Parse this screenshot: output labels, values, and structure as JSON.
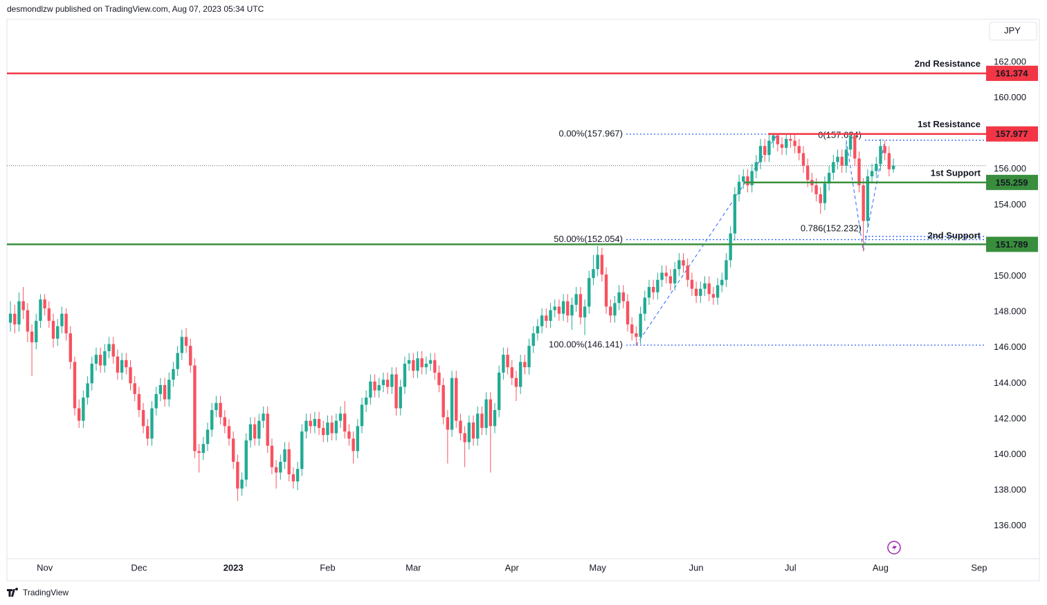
{
  "header": "desmondlzw published on TradingView.com, Aug 07, 2023 05:34 UTC",
  "footer": "TradingView",
  "chart_data": {
    "type": "candlestick",
    "currency": "JPY",
    "categories": [
      null,
      null,
      null,
      null,
      null,
      null,
      null,
      null,
      "Nov",
      null,
      null,
      null,
      null,
      null,
      null,
      null,
      null,
      null,
      null,
      null,
      null,
      null,
      null,
      null,
      null,
      null,
      null,
      null,
      null,
      null,
      "Dec",
      null,
      null,
      null,
      null,
      null,
      null,
      null,
      null,
      null,
      null,
      null,
      null,
      null,
      null,
      null,
      null,
      null,
      null,
      null,
      null,
      null,
      "2023",
      null,
      null,
      null,
      null,
      null,
      null,
      null,
      null,
      null,
      null,
      null,
      null,
      null,
      null,
      null,
      null,
      null,
      null,
      null,
      null,
      null,
      "Feb",
      null,
      null,
      null,
      null,
      null,
      null,
      null,
      null,
      null,
      null,
      null,
      null,
      null,
      null,
      null,
      null,
      null,
      null,
      null,
      "Mar",
      null,
      null,
      null,
      null,
      null,
      null,
      null,
      null,
      null,
      null,
      null,
      null,
      null,
      null,
      null,
      null,
      null,
      null,
      null,
      null,
      null,
      null,
      "Apr",
      null,
      null,
      null,
      null,
      null,
      null,
      null,
      null,
      null,
      null,
      null,
      null,
      null,
      null,
      null,
      null,
      null,
      null,
      null,
      "May",
      null,
      null,
      null,
      null,
      null,
      null,
      null,
      null,
      null,
      null,
      null,
      null,
      null,
      null,
      null,
      null,
      null,
      null,
      null,
      null,
      null,
      null,
      "Jun",
      null,
      null,
      null,
      null,
      null,
      null,
      null,
      null,
      null,
      null,
      null,
      null,
      null,
      null,
      null,
      null,
      null,
      null,
      null,
      null,
      null,
      "Jul",
      null,
      null,
      null,
      null,
      null,
      null,
      null,
      null,
      null,
      null,
      null,
      null,
      null,
      null,
      null,
      null,
      null,
      null,
      null,
      null,
      "Aug",
      null,
      null,
      null,
      null,
      null,
      null,
      null,
      null,
      null,
      null,
      null,
      null,
      null,
      null,
      null,
      null,
      null,
      null,
      null,
      null,
      null,
      null,
      "Sep"
    ],
    "open": [
      147.4,
      147.9,
      147.3,
      148.6,
      148.1,
      146.9,
      146.3,
      147.5,
      148.7,
      148.2,
      147.5,
      146.5,
      147.2,
      147.9,
      146.8,
      145.2,
      142.6,
      141.9,
      143.2,
      144.0,
      145.1,
      145.6,
      145.0,
      145.8,
      146.2,
      145.5,
      144.6,
      145.3,
      144.9,
      144.0,
      143.4,
      142.5,
      141.6,
      140.9,
      142.6,
      143.4,
      143.9,
      143.1,
      144.2,
      144.8,
      145.7,
      146.6,
      146.1,
      145.0,
      140.2,
      140.1,
      140.6,
      141.4,
      142.5,
      142.9,
      142.1,
      141.6,
      140.9,
      139.6,
      138.1,
      138.6,
      140.8,
      141.7,
      140.9,
      141.9,
      142.3,
      140.5,
      139.3,
      139.0,
      139.6,
      140.3,
      138.9,
      138.5,
      139.2,
      141.3,
      141.9,
      141.6,
      142.0,
      141.5,
      141.1,
      141.8,
      141.2,
      141.9,
      142.3,
      141.3,
      140.9,
      140.2,
      141.6,
      142.8,
      143.2,
      144.1,
      143.6,
      143.9,
      144.2,
      143.8,
      144.5,
      142.6,
      143.8,
      145.1,
      145.3,
      144.7,
      145.4,
      144.9,
      145.1,
      145.3,
      144.6,
      143.9,
      142.1,
      141.4,
      144.3,
      141.9,
      141.2,
      140.7,
      141.8,
      140.9,
      142.3,
      141.5,
      143.1,
      141.6,
      142.5,
      144.6,
      145.6,
      144.9,
      144.3,
      143.8,
      145.2,
      144.9,
      146.1,
      146.8,
      147.2,
      147.8,
      147.5,
      148.1,
      148.3,
      147.9,
      148.6,
      147.8,
      148.4,
      149.0,
      147.7,
      148.3,
      149.9,
      150.4,
      151.2,
      150.1,
      148.3,
      147.8,
      148.5,
      149.1,
      148.6,
      147.3,
      146.8,
      146.6,
      147.9,
      148.8,
      149.4,
      149.1,
      149.8,
      150.2,
      150.0,
      149.6,
      150.4,
      150.9,
      150.6,
      149.8,
      149.3,
      148.9,
      149.3,
      149.6,
      149.0,
      148.8,
      149.5,
      149.8,
      150.9,
      152.4,
      154.6,
      155.3,
      155.6,
      155.1,
      155.9,
      156.4,
      157.3,
      156.8,
      157.6,
      157.9,
      157.4,
      157.2,
      157.7,
      157.6,
      157.3,
      156.9,
      156.2,
      155.4,
      155.1,
      154.6,
      154.1,
      155.2,
      155.8,
      156.4,
      156.7,
      156.2,
      157.1,
      157.9,
      156.6,
      155.1,
      153.1,
      155.6,
      155.9,
      156.3,
      157.3,
      156.9,
      156.0,
      null,
      null,
      null,
      null,
      null,
      null,
      null,
      null,
      null,
      null,
      null,
      null,
      null,
      null,
      null,
      null,
      null,
      null,
      null,
      null
    ],
    "high": [
      148.6,
      148.4,
      149.1,
      149.4,
      148.5,
      147.3,
      147.9,
      149.0,
      149.0,
      148.6,
      147.9,
      147.6,
      148.3,
      148.2,
      147.2,
      145.5,
      143.1,
      143.6,
      144.4,
      145.5,
      146.0,
      146.0,
      146.2,
      146.6,
      146.6,
      145.9,
      145.7,
      145.7,
      145.3,
      144.4,
      143.8,
      142.9,
      142.0,
      143.0,
      143.8,
      144.3,
      144.3,
      144.6,
      145.2,
      146.1,
      147.0,
      147.1,
      146.5,
      145.4,
      140.6,
      141.0,
      141.8,
      142.9,
      143.3,
      143.3,
      142.5,
      142.0,
      141.3,
      140.0,
      139.0,
      141.2,
      142.1,
      142.1,
      142.3,
      142.7,
      142.7,
      140.9,
      139.7,
      140.0,
      140.7,
      140.7,
      139.3,
      139.6,
      141.7,
      142.3,
      142.3,
      142.4,
      142.4,
      141.9,
      142.2,
      142.2,
      142.3,
      142.7,
      143.0,
      141.7,
      141.3,
      142.0,
      143.2,
      143.6,
      144.5,
      144.5,
      144.3,
      144.6,
      144.6,
      144.9,
      144.9,
      144.2,
      145.5,
      145.7,
      145.7,
      145.8,
      145.8,
      145.5,
      145.7,
      145.7,
      145.0,
      144.3,
      142.5,
      144.7,
      144.7,
      142.3,
      141.6,
      142.2,
      142.2,
      142.7,
      142.7,
      143.5,
      143.5,
      142.9,
      145.0,
      146.0,
      146.0,
      145.3,
      144.7,
      145.6,
      145.6,
      146.5,
      147.2,
      147.6,
      148.2,
      148.2,
      148.5,
      148.7,
      148.7,
      149.0,
      149.0,
      148.8,
      149.4,
      149.4,
      148.7,
      150.3,
      151.2,
      151.7,
      151.6,
      150.5,
      148.7,
      148.9,
      149.5,
      149.5,
      149.0,
      147.7,
      147.2,
      148.3,
      149.2,
      149.8,
      149.8,
      150.2,
      150.6,
      150.6,
      150.4,
      150.8,
      151.3,
      151.3,
      151.0,
      150.2,
      149.7,
      149.7,
      150.0,
      150.0,
      149.4,
      149.9,
      150.2,
      151.3,
      152.8,
      155.0,
      155.7,
      156.0,
      156.0,
      156.3,
      156.8,
      157.7,
      157.7,
      158.0,
      158.0,
      158.0,
      157.8,
      158.0,
      158.0,
      158.0,
      157.7,
      157.3,
      156.6,
      155.8,
      155.5,
      155.0,
      155.6,
      156.2,
      156.8,
      157.1,
      157.1,
      157.5,
      158.0,
      158.0,
      157.0,
      155.5,
      156.0,
      156.3,
      156.7,
      157.7,
      157.6,
      157.3,
      156.6,
      null,
      null,
      null,
      null,
      null,
      null,
      null,
      null,
      null,
      null,
      null,
      null,
      null,
      null,
      null,
      null,
      null,
      null,
      null,
      null
    ],
    "low": [
      146.9,
      146.8,
      146.9,
      147.6,
      146.3,
      144.4,
      145.9,
      147.1,
      147.8,
      147.1,
      146.0,
      146.1,
      146.8,
      146.4,
      144.8,
      142.2,
      141.5,
      141.5,
      142.8,
      143.6,
      144.7,
      144.6,
      144.6,
      145.4,
      145.1,
      144.2,
      144.2,
      144.5,
      143.6,
      143.0,
      142.1,
      141.2,
      140.5,
      140.5,
      142.2,
      143.0,
      142.7,
      142.7,
      143.8,
      144.4,
      145.3,
      145.7,
      144.6,
      139.8,
      139.0,
      139.7,
      140.2,
      141.0,
      142.1,
      141.7,
      141.2,
      140.5,
      139.2,
      137.4,
      137.7,
      138.2,
      140.4,
      140.5,
      140.5,
      141.5,
      140.1,
      138.9,
      138.1,
      138.6,
      139.2,
      138.5,
      138.1,
      138.0,
      138.8,
      140.9,
      141.2,
      141.2,
      141.1,
      140.7,
      140.7,
      140.8,
      140.8,
      141.5,
      140.9,
      140.5,
      139.5,
      139.8,
      141.2,
      142.4,
      142.8,
      143.2,
      143.2,
      143.5,
      143.4,
      143.4,
      142.2,
      142.2,
      143.4,
      144.7,
      144.3,
      144.3,
      144.5,
      144.5,
      144.7,
      144.2,
      143.5,
      141.7,
      139.5,
      141.0,
      141.5,
      140.8,
      139.3,
      140.3,
      140.5,
      140.5,
      141.1,
      141.1,
      139.0,
      141.2,
      142.1,
      144.2,
      144.5,
      143.9,
      143.0,
      143.4,
      144.5,
      144.5,
      145.7,
      146.4,
      146.8,
      147.1,
      147.1,
      147.7,
      147.5,
      147.5,
      147.4,
      147.0,
      148.0,
      147.3,
      146.7,
      147.9,
      149.5,
      150.0,
      149.7,
      147.9,
      147.4,
      147.4,
      148.1,
      148.2,
      146.9,
      146.4,
      146.1,
      146.2,
      147.5,
      148.4,
      148.7,
      148.7,
      149.4,
      149.6,
      149.2,
      149.2,
      150.0,
      150.2,
      149.4,
      148.9,
      148.5,
      148.5,
      148.9,
      148.6,
      148.4,
      148.4,
      149.1,
      149.4,
      150.5,
      152.0,
      154.2,
      154.9,
      154.7,
      154.7,
      155.5,
      156.0,
      156.4,
      156.4,
      157.2,
      157.0,
      156.8,
      156.8,
      157.2,
      156.9,
      156.5,
      155.8,
      155.0,
      154.7,
      154.2,
      153.5,
      153.7,
      154.8,
      155.4,
      156.0,
      155.8,
      155.8,
      156.7,
      156.2,
      154.7,
      151.4,
      152.7,
      155.2,
      155.5,
      155.9,
      156.5,
      155.6,
      155.8,
      null,
      null,
      null,
      null,
      null,
      null,
      null,
      null,
      null,
      null,
      null,
      null,
      null,
      null,
      null,
      null,
      null,
      null,
      null,
      null
    ],
    "close": [
      147.9,
      147.3,
      148.6,
      148.1,
      146.9,
      146.3,
      147.5,
      148.7,
      148.2,
      147.5,
      146.5,
      147.2,
      147.9,
      146.8,
      145.2,
      142.6,
      141.9,
      143.2,
      144.0,
      145.1,
      145.6,
      145.0,
      145.8,
      146.2,
      145.5,
      144.6,
      145.3,
      144.9,
      144.0,
      143.4,
      142.5,
      141.6,
      140.9,
      142.6,
      143.4,
      143.9,
      143.1,
      144.2,
      144.8,
      145.7,
      146.6,
      146.1,
      145.0,
      140.2,
      140.1,
      140.6,
      141.4,
      142.5,
      142.9,
      142.1,
      141.6,
      140.9,
      139.6,
      138.1,
      138.6,
      140.8,
      141.7,
      140.9,
      141.9,
      142.3,
      140.5,
      139.3,
      139.0,
      139.6,
      140.3,
      138.9,
      138.5,
      139.2,
      141.3,
      141.9,
      141.6,
      142.0,
      141.5,
      141.1,
      141.8,
      141.2,
      141.9,
      142.3,
      141.3,
      140.9,
      140.2,
      141.6,
      142.8,
      143.2,
      144.1,
      143.6,
      143.9,
      144.2,
      143.8,
      144.5,
      142.6,
      143.8,
      145.1,
      145.3,
      144.7,
      145.4,
      144.9,
      145.1,
      145.3,
      144.6,
      143.9,
      142.1,
      141.4,
      144.3,
      141.9,
      141.2,
      140.7,
      141.8,
      140.9,
      142.3,
      141.5,
      143.1,
      141.6,
      142.5,
      144.6,
      145.6,
      144.9,
      144.3,
      143.8,
      145.2,
      144.9,
      146.1,
      146.8,
      147.2,
      147.8,
      147.5,
      148.1,
      148.3,
      147.9,
      148.6,
      147.8,
      148.4,
      149.0,
      147.7,
      148.3,
      149.9,
      150.4,
      151.2,
      150.1,
      148.3,
      147.8,
      148.5,
      149.1,
      148.6,
      147.3,
      146.8,
      146.6,
      147.9,
      148.8,
      149.4,
      149.1,
      149.8,
      150.2,
      150.0,
      149.6,
      150.4,
      150.9,
      150.6,
      149.8,
      149.3,
      148.9,
      149.3,
      149.6,
      149.0,
      148.8,
      149.5,
      149.8,
      150.9,
      152.4,
      154.6,
      155.3,
      155.6,
      155.1,
      155.9,
      156.4,
      157.3,
      156.8,
      157.6,
      157.9,
      157.4,
      157.2,
      157.7,
      157.6,
      157.3,
      156.9,
      156.2,
      155.4,
      155.1,
      154.6,
      154.1,
      155.2,
      155.8,
      156.4,
      156.7,
      156.2,
      157.1,
      157.9,
      156.6,
      155.1,
      153.1,
      155.6,
      155.9,
      156.3,
      157.3,
      156.9,
      156.0,
      156.2,
      null,
      null,
      null,
      null,
      null,
      null,
      null,
      null,
      null,
      null,
      null,
      null,
      null,
      null,
      null,
      null,
      null,
      null,
      null,
      null
    ],
    "up_color": "#22ab94",
    "down_color": "#f7525f",
    "ylim": [
      134.17,
      164.4
    ],
    "yticks": [
      {
        "value": 136,
        "label": "136.000"
      },
      {
        "value": 138,
        "label": "138.000"
      },
      {
        "value": 140,
        "label": "140.000"
      },
      {
        "value": 142,
        "label": "142.000"
      },
      {
        "value": 144,
        "label": "144.000"
      },
      {
        "value": 146,
        "label": "146.000"
      },
      {
        "value": 148,
        "label": "148.000"
      },
      {
        "value": 150,
        "label": "150.000"
      },
      {
        "value": 152,
        "label": "152.000"
      },
      {
        "value": 154,
        "label": "154.000"
      },
      {
        "value": 156,
        "label": "156.000"
      },
      {
        "value": 158,
        "label": "158.000"
      },
      {
        "value": 160,
        "label": "160.000"
      },
      {
        "value": 162,
        "label": "162.000"
      }
    ],
    "grid": false,
    "levels": [
      {
        "name": "2nd Resistance",
        "value": 161.374,
        "color": "#f23645"
      },
      {
        "name": "1st Resistance",
        "value": 157.977,
        "color": "#f23645"
      },
      {
        "name": "1st Support",
        "value": 155.259,
        "color": "#388e3c"
      },
      {
        "name": "2nd Support",
        "value": 151.789,
        "color": "#388e3c"
      }
    ],
    "fib_color": "#2962ff",
    "fibs": [
      {
        "label": "0.00%(157.967)",
        "value": 157.967
      },
      {
        "label": "50.00%(152.054)",
        "value": 152.054
      },
      {
        "label": "100.00%(146.141)",
        "value": 146.141
      },
      {
        "label": "0(157.624)",
        "value": 157.624
      },
      {
        "label": "0.786(152.232)",
        "value": 152.232
      }
    ]
  }
}
